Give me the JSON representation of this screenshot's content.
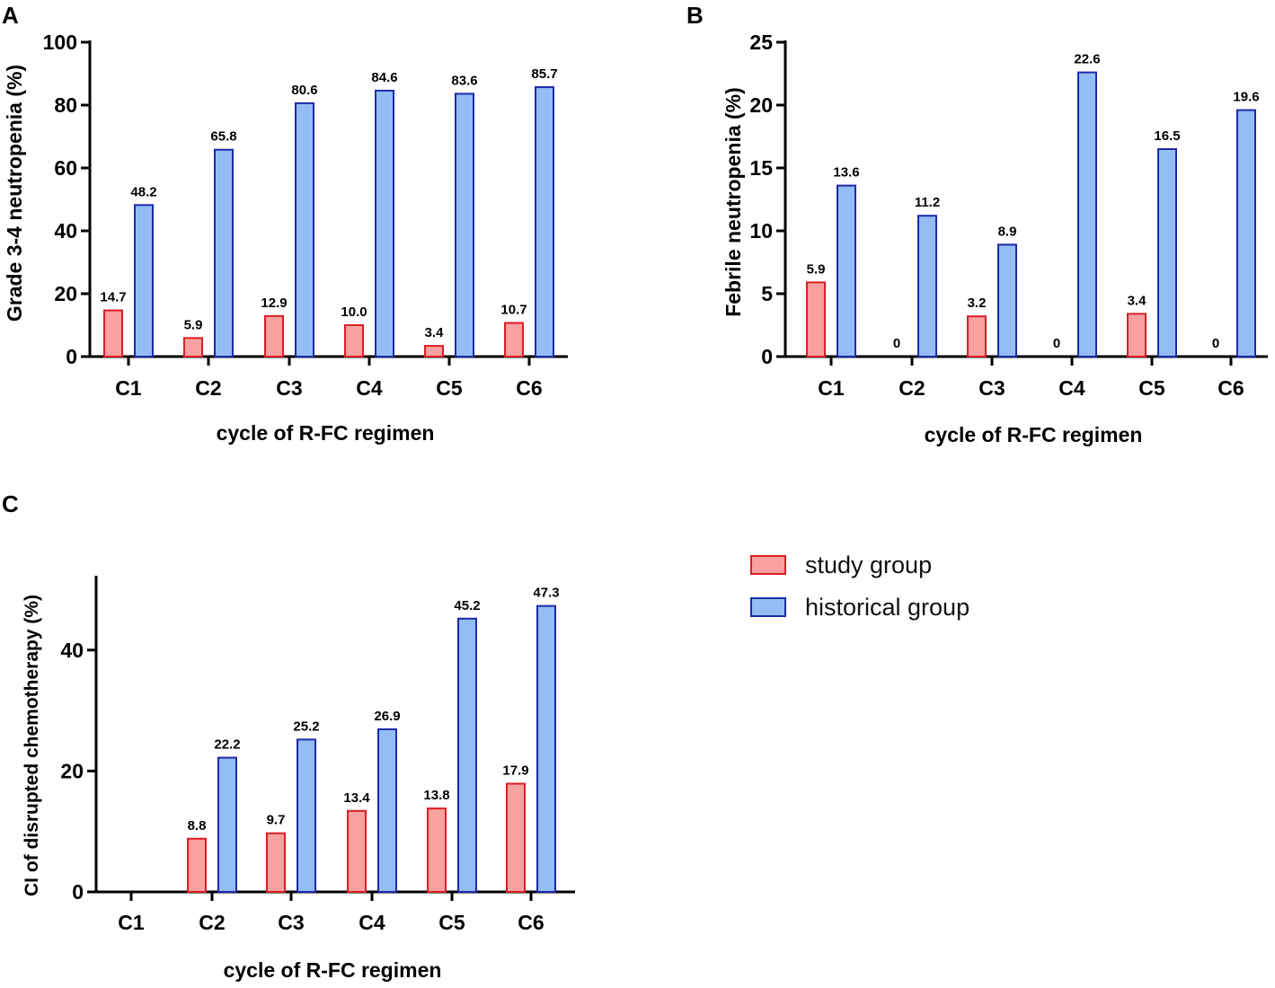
{
  "colors": {
    "study_fill": "#f9a0a0",
    "study_stroke": "#d81e24",
    "historical_fill": "#94bdf5",
    "historical_stroke": "#1c2aa8",
    "axis": "#000000"
  },
  "legend": {
    "study_label": "study group",
    "historical_label": "historical group"
  },
  "chart_data": [
    {
      "type": "bar",
      "panel": "A",
      "title": "",
      "xlabel": "cycle of R-FC regimen",
      "ylabel": "Grade 3-4 neutropenia (%)",
      "ylim": [
        0,
        100
      ],
      "yticks": [
        0,
        20,
        40,
        60,
        80,
        100
      ],
      "categories": [
        "C1",
        "C2",
        "C3",
        "C4",
        "C5",
        "C6"
      ],
      "series": [
        {
          "name": "study group",
          "values": [
            14.7,
            5.9,
            12.9,
            10.0,
            3.4,
            10.7
          ],
          "labels": [
            "14.7",
            "5.9",
            "12.9",
            "10.0",
            "3.4",
            "10.7"
          ]
        },
        {
          "name": "historical group",
          "values": [
            48.2,
            65.8,
            80.6,
            84.6,
            83.6,
            85.7
          ],
          "labels": [
            "48.2",
            "65.8",
            "80.6",
            "84.6",
            "83.6",
            "85.7"
          ]
        }
      ]
    },
    {
      "type": "bar",
      "panel": "B",
      "title": "",
      "xlabel": "cycle of R-FC regimen",
      "ylabel": "Febrile neutropenia (%)",
      "ylim": [
        0,
        25
      ],
      "yticks": [
        0,
        5,
        10,
        15,
        20,
        25
      ],
      "categories": [
        "C1",
        "C2",
        "C3",
        "C4",
        "C5",
        "C6"
      ],
      "series": [
        {
          "name": "study group",
          "values": [
            5.9,
            0,
            3.2,
            0,
            3.4,
            0
          ],
          "labels": [
            "5.9",
            "0",
            "3.2",
            "0",
            "3.4",
            "0"
          ]
        },
        {
          "name": "historical group",
          "values": [
            13.6,
            11.2,
            8.9,
            22.6,
            16.5,
            19.6
          ],
          "labels": [
            "13.6",
            "11.2",
            "8.9",
            "22.6",
            "16.5",
            "19.6"
          ]
        }
      ]
    },
    {
      "type": "bar",
      "panel": "C",
      "title": "",
      "xlabel": "cycle of R-FC regimen",
      "ylabel": "CI of disrupted chemotherapy (%)",
      "ylim": [
        0,
        52
      ],
      "yticks": [
        0,
        20,
        40
      ],
      "categories": [
        "C1",
        "C2",
        "C3",
        "C4",
        "C5",
        "C6"
      ],
      "series": [
        {
          "name": "study group",
          "values": [
            null,
            8.8,
            9.7,
            13.4,
            13.8,
            17.9
          ],
          "labels": [
            "",
            "8.8",
            "9.7",
            "13.4",
            "13.8",
            "17.9"
          ]
        },
        {
          "name": "historical group",
          "values": [
            null,
            22.2,
            25.2,
            26.9,
            45.2,
            47.3
          ],
          "labels": [
            "",
            "22.2",
            "25.2",
            "26.9",
            "45.2",
            "47.3"
          ]
        }
      ]
    }
  ]
}
